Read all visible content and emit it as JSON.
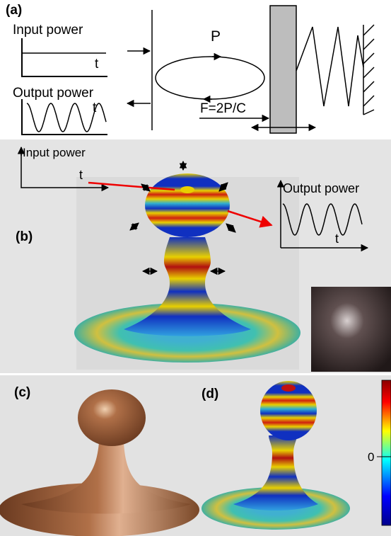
{
  "panel_a": {
    "label": "(a)",
    "input_label": "Input power",
    "input_axis": "t",
    "output_label": "Output power",
    "output_axis": "t",
    "loop_label": "P",
    "force_label": "F=2P/C"
  },
  "panel_b": {
    "label": "(b)",
    "input_label": "Input power",
    "input_axis": "t",
    "output_label": "Output power",
    "output_axis": "t"
  },
  "panel_c": {
    "label": "(c)"
  },
  "panel_d": {
    "label": "(d)",
    "colorbar_tick": 0
  }
}
